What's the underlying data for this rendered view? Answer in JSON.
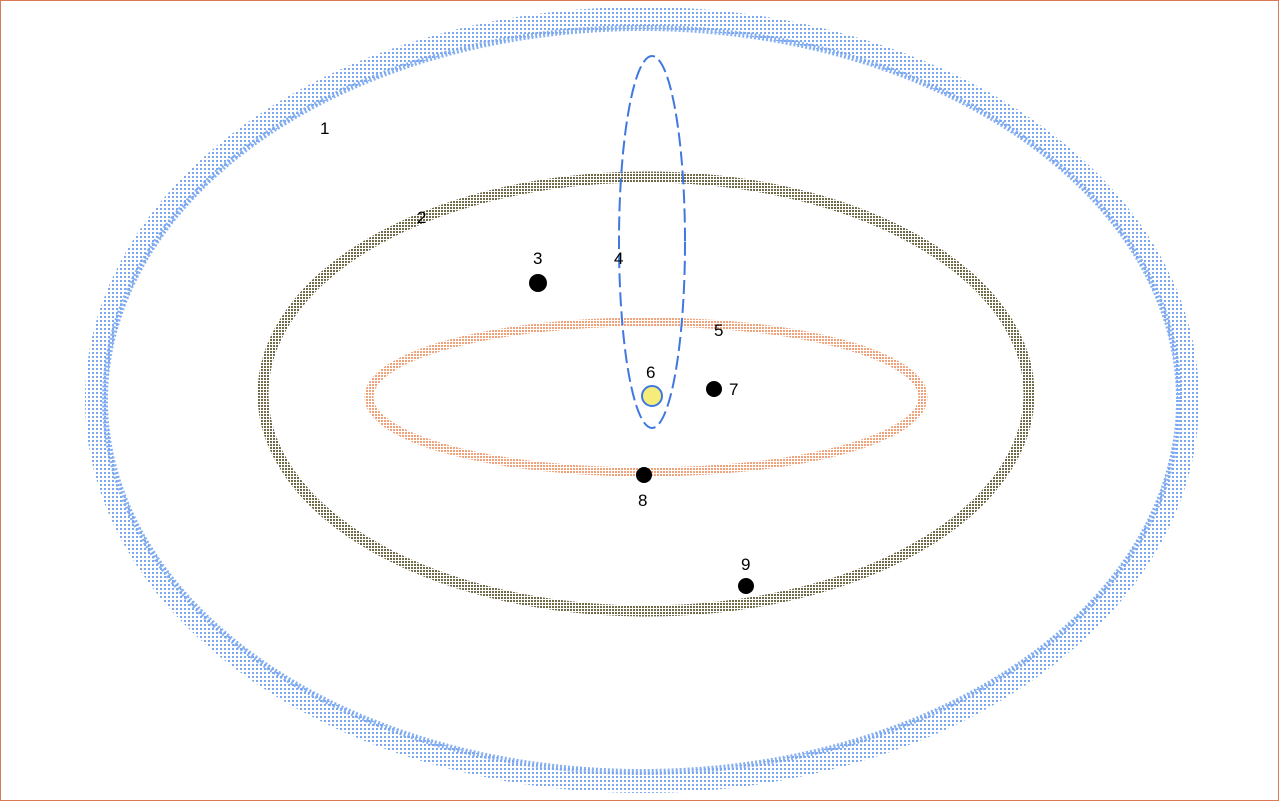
{
  "colors": {
    "border": "#d9795a",
    "orbit_1": "#7aa7f0",
    "orbit_2": "#6f6a48",
    "orbit_4": "#3f78e0",
    "orbit_5": "#f0a27a",
    "center_body_fill": "#f6ec7a",
    "center_body_ring": "#3f78e0",
    "dot": "#000000",
    "label": "#000000"
  },
  "labels": {
    "l1": "1",
    "l2": "2",
    "l3": "3",
    "l4": "4",
    "l5": "5",
    "l6": "6",
    "l7": "7",
    "l8": "8",
    "l9": "9"
  }
}
